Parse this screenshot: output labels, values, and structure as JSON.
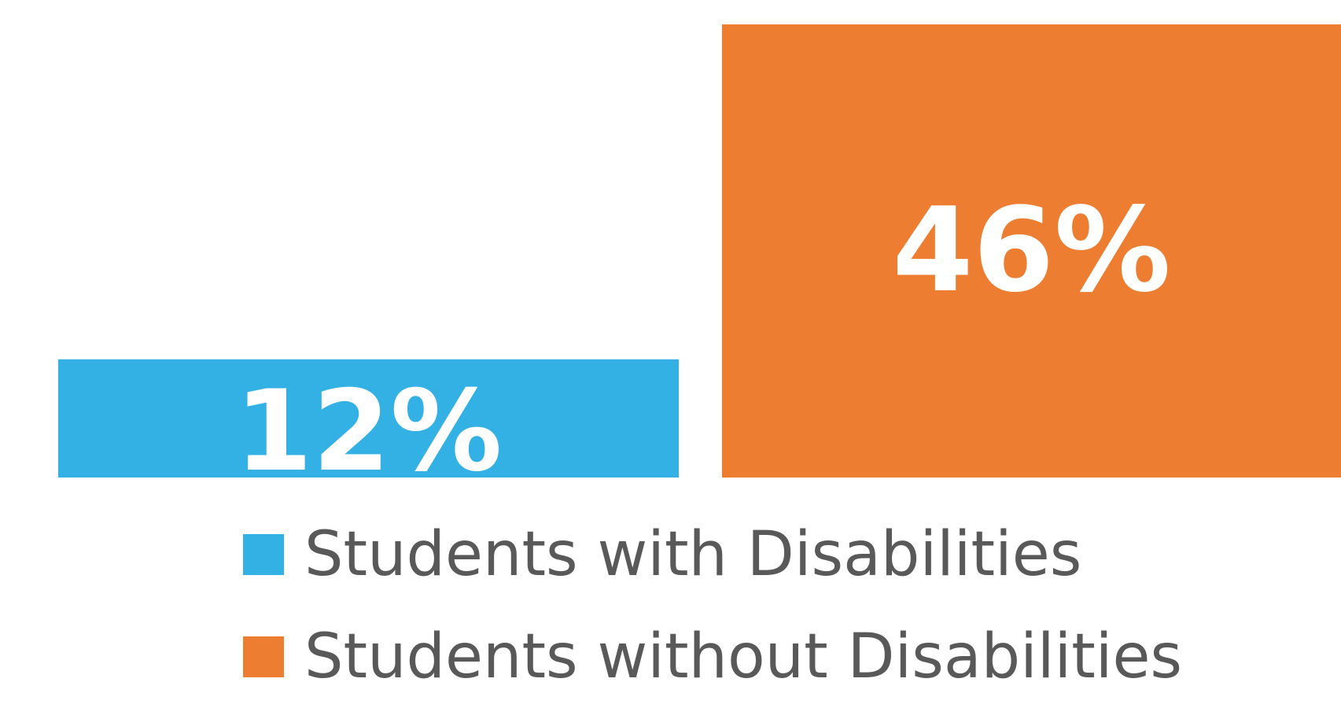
{
  "chart_data": {
    "type": "bar",
    "title": "",
    "xlabel": "",
    "ylabel": "",
    "ylim": [
      0,
      46
    ],
    "grid": false,
    "legend_position": "bottom",
    "unit": "%",
    "series": [
      {
        "name": "Students with Disabilities",
        "value": 12,
        "label": "12%",
        "color": "#33B0E4"
      },
      {
        "name": "Students without Disabilities",
        "value": 46,
        "label": "46%",
        "color": "#ED7D31"
      }
    ]
  }
}
